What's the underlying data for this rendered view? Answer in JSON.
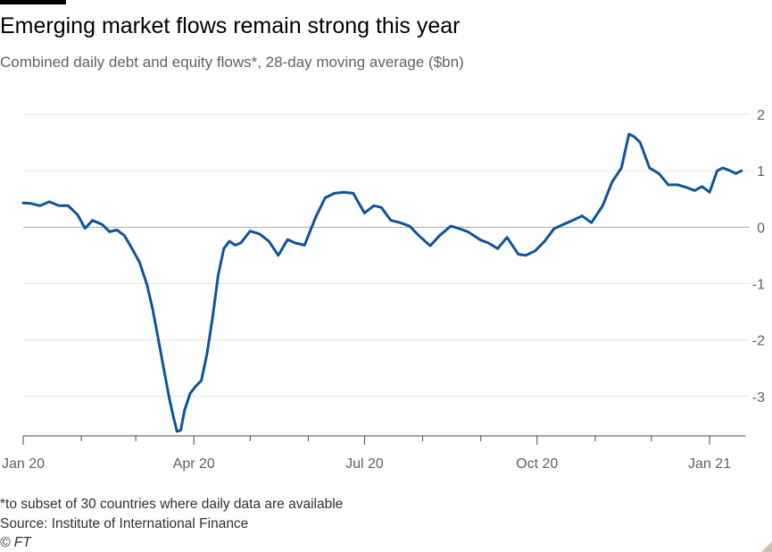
{
  "title": "Emerging market flows remain strong this year",
  "subtitle": "Combined daily debt and equity flows*, 28-day moving average ($bn)",
  "footnotes": {
    "note": "*to subset of 30 countries where daily data are available",
    "source": "Source: Institute of International Finance",
    "credit": "© FT"
  },
  "colors": {
    "line": "#0f5499",
    "grid": "#e6e1dc",
    "zero": "#b3a9a0"
  },
  "chart_data": {
    "type": "line",
    "title": "Emerging market flows remain strong this year",
    "subtitle": "Combined daily debt and equity flows*, 28-day moving average ($bn)",
    "xlabel": "",
    "ylabel": "",
    "xlim": [
      "2020-01-01",
      "2021-01-20"
    ],
    "ylim": [
      -3.7,
      2
    ],
    "yticks": [
      2,
      1,
      0,
      -1,
      -2,
      -3
    ],
    "ytick_labels": [
      "2",
      "1",
      "0",
      "-1",
      "-2",
      "-3"
    ],
    "xticks": [
      "2020-01-01",
      "2020-04-01",
      "2020-07-01",
      "2020-10-01",
      "2021-01-01"
    ],
    "xtick_labels": [
      "Jan 20",
      "Apr 20",
      "Jul 20",
      "Oct 20",
      "Jan 21"
    ],
    "grid": true,
    "series": [
      {
        "x": [
          "2020-01-01",
          "2020-01-05",
          "2020-01-10",
          "2020-01-15",
          "2020-01-20",
          "2020-01-25",
          "2020-01-30",
          "2020-02-03",
          "2020-02-07",
          "2020-02-12",
          "2020-02-16",
          "2020-02-20",
          "2020-02-24",
          "2020-02-28",
          "2020-03-03",
          "2020-03-07",
          "2020-03-10",
          "2020-03-13",
          "2020-03-16",
          "2020-03-19",
          "2020-03-21",
          "2020-03-23",
          "2020-03-25",
          "2020-03-27",
          "2020-03-30",
          "2020-04-02",
          "2020-04-05",
          "2020-04-08",
          "2020-04-11",
          "2020-04-14",
          "2020-04-17",
          "2020-04-20",
          "2020-04-23",
          "2020-04-26",
          "2020-05-01",
          "2020-05-06",
          "2020-05-11",
          "2020-05-16",
          "2020-05-21",
          "2020-05-25",
          "2020-05-30",
          "2020-06-05",
          "2020-06-10",
          "2020-06-15",
          "2020-06-20",
          "2020-06-25",
          "2020-07-01",
          "2020-07-06",
          "2020-07-10",
          "2020-07-15",
          "2020-07-20",
          "2020-07-25",
          "2020-07-30",
          "2020-08-05",
          "2020-08-10",
          "2020-08-16",
          "2020-08-20",
          "2020-08-25",
          "2020-09-01",
          "2020-09-05",
          "2020-09-10",
          "2020-09-15",
          "2020-09-21",
          "2020-09-25",
          "2020-09-30",
          "2020-10-05",
          "2020-10-10",
          "2020-10-15",
          "2020-10-20",
          "2020-10-25",
          "2020-10-30",
          "2020-11-05",
          "2020-11-10",
          "2020-11-15",
          "2020-11-19",
          "2020-11-22",
          "2020-11-25",
          "2020-11-30",
          "2020-12-05",
          "2020-12-10",
          "2020-12-15",
          "2020-12-20",
          "2020-12-24",
          "2020-12-28",
          "2021-01-01",
          "2021-01-05",
          "2021-01-08",
          "2021-01-12",
          "2021-01-15",
          "2021-01-18"
        ],
        "values": [
          0.43,
          0.42,
          0.38,
          0.45,
          0.38,
          0.38,
          0.22,
          -0.02,
          0.12,
          0.05,
          -0.08,
          -0.05,
          -0.15,
          -0.38,
          -0.62,
          -1.02,
          -1.45,
          -1.98,
          -2.52,
          -3.05,
          -3.35,
          -3.62,
          -3.6,
          -3.25,
          -2.95,
          -2.82,
          -2.72,
          -2.25,
          -1.6,
          -0.85,
          -0.38,
          -0.25,
          -0.32,
          -0.28,
          -0.07,
          -0.12,
          -0.25,
          -0.5,
          -0.22,
          -0.28,
          -0.32,
          0.18,
          0.52,
          0.6,
          0.62,
          0.6,
          0.25,
          0.38,
          0.35,
          0.12,
          0.08,
          0.02,
          -0.15,
          -0.33,
          -0.15,
          0.02,
          -0.02,
          -0.08,
          -0.23,
          -0.28,
          -0.38,
          -0.18,
          -0.48,
          -0.5,
          -0.42,
          -0.25,
          -0.03,
          0.05,
          0.12,
          0.2,
          0.08,
          0.38,
          0.8,
          1.05,
          1.65,
          1.6,
          1.5,
          1.05,
          0.95,
          0.75,
          0.75,
          0.7,
          0.65,
          0.72,
          0.62,
          1.0,
          1.05,
          1.0,
          0.95,
          1.0
        ]
      }
    ]
  }
}
